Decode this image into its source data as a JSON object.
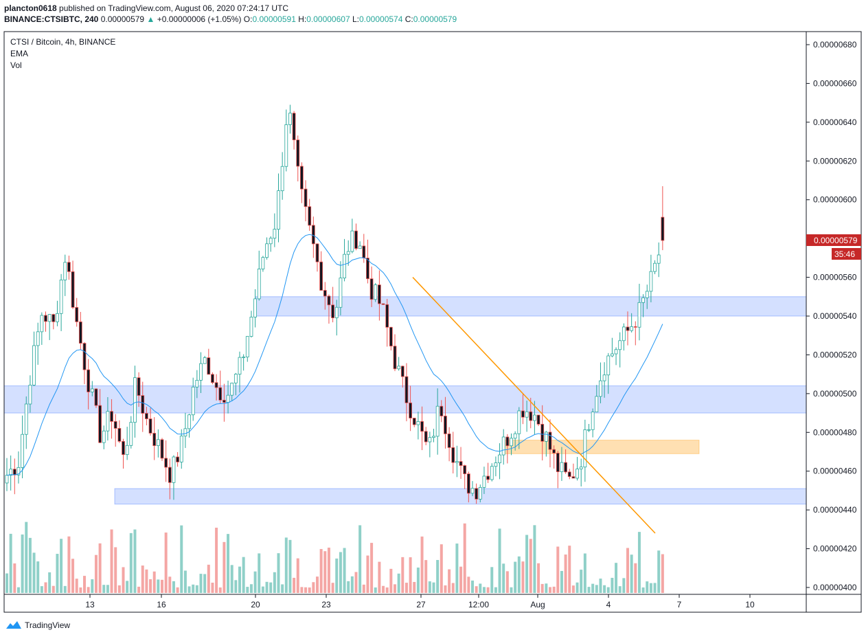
{
  "header": {
    "publisher": "plancton0618",
    "published_text": "published on TradingView.com, August 06, 2020 07:24:17 UTC",
    "symbol": "BINANCE:CTSIBTC, 240",
    "last": "0.00000579",
    "change_arrow": "▲",
    "change": "+0.00000006 (+1.05%)",
    "o_label": "O:",
    "o": "0.00000591",
    "h_label": "H:",
    "h": "0.00000607",
    "l_label": "L:",
    "l": "0.00000574",
    "c_label": "C:",
    "c": "0.00000579"
  },
  "legend": {
    "title": "CTSI / Bitcoin, 4h, BINANCE",
    "ema": "EMA",
    "vol": "Vol"
  },
  "footer": {
    "brand": "TradingView",
    "icon": "tradingview-logo-icon"
  },
  "colors": {
    "up": "#26a69a",
    "down": "#ef5350",
    "candle_up_fill": "#ffffff",
    "candle_down_fill": "#131722",
    "vol_up": "#8fd0c8",
    "vol_down": "#f4a6a4",
    "ema": "#2196f3",
    "zone_blue": "#2962ff",
    "zone_orange": "#ff9800",
    "trendline": "#ff9800",
    "price_label_bg": "#c62828"
  },
  "chart_data": {
    "type": "candlestick",
    "title": "CTSI / Bitcoin, 4h, BINANCE",
    "ylim": [
      3.97e-06,
      6.86e-06
    ],
    "y_ticks": [
      "0.00000680",
      "0.00000660",
      "0.00000640",
      "0.00000620",
      "0.00000600",
      "0.00000580",
      "0.00000560",
      "0.00000540",
      "0.00000520",
      "0.00000500",
      "0.00000480",
      "0.00000460",
      "0.00000440",
      "0.00000420",
      "0.00000400"
    ],
    "x_ticks": [
      "13",
      "16",
      "20",
      "23",
      "27",
      "12:00",
      "Aug",
      "4",
      "7",
      "10"
    ],
    "current_price_label": "0.00000579",
    "countdown_label": "35:46",
    "series": [
      {
        "name": "CTSI / Bitcoin",
        "ohlc_close_samples": [
          4.58,
          4.65,
          5.1,
          5.42,
          5.35,
          5.72,
          5.35,
          5.05,
          4.78,
          4.9,
          4.65,
          5.05,
          4.85,
          4.72,
          4.58,
          4.75,
          5.05,
          5.18,
          5.02,
          5.0,
          5.15,
          5.43,
          5.75,
          5.9,
          6.5,
          6.05,
          5.8,
          5.55,
          5.4,
          5.75,
          5.82,
          5.55,
          5.45,
          5.2,
          5.0,
          4.85,
          4.7,
          4.95,
          4.72,
          4.55,
          4.5,
          4.6,
          4.7,
          4.8,
          4.93,
          4.9,
          4.78,
          4.62,
          4.55,
          4.66,
          4.95,
          5.15,
          5.24,
          5.32,
          5.42,
          5.58,
          5.79
        ]
      }
    ],
    "zones": [
      {
        "kind": "support",
        "color": "blue",
        "low": 5.4e-06,
        "high": 5.5e-06
      },
      {
        "kind": "support",
        "color": "blue",
        "low": 4.9e-06,
        "high": 5.04e-06
      },
      {
        "kind": "support",
        "color": "blue",
        "low": 4.43e-06,
        "high": 4.51e-06
      },
      {
        "kind": "demand",
        "color": "orange",
        "low": 4.69e-06,
        "high": 4.76e-06
      }
    ],
    "trendline": {
      "from": 5.6e-06,
      "to": 4.28e-06
    }
  }
}
